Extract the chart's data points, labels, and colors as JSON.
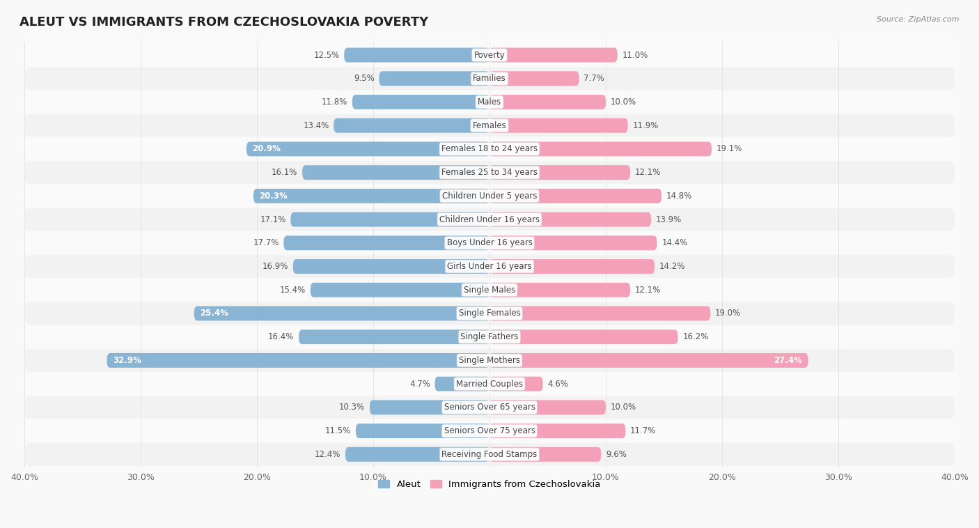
{
  "title": "ALEUT VS IMMIGRANTS FROM CZECHOSLOVAKIA POVERTY",
  "source": "Source: ZipAtlas.com",
  "categories": [
    "Poverty",
    "Families",
    "Males",
    "Females",
    "Females 18 to 24 years",
    "Females 25 to 34 years",
    "Children Under 5 years",
    "Children Under 16 years",
    "Boys Under 16 years",
    "Girls Under 16 years",
    "Single Males",
    "Single Females",
    "Single Fathers",
    "Single Mothers",
    "Married Couples",
    "Seniors Over 65 years",
    "Seniors Over 75 years",
    "Receiving Food Stamps"
  ],
  "aleut_values": [
    12.5,
    9.5,
    11.8,
    13.4,
    20.9,
    16.1,
    20.3,
    17.1,
    17.7,
    16.9,
    15.4,
    25.4,
    16.4,
    32.9,
    4.7,
    10.3,
    11.5,
    12.4
  ],
  "czech_values": [
    11.0,
    7.7,
    10.0,
    11.9,
    19.1,
    12.1,
    14.8,
    13.9,
    14.4,
    14.2,
    12.1,
    19.0,
    16.2,
    27.4,
    4.6,
    10.0,
    11.7,
    9.6
  ],
  "aleut_color": "#8ab4d4",
  "czech_color": "#f4a0b8",
  "row_color_odd": "#f2f2f2",
  "row_color_even": "#fafafa",
  "background_color": "#f9f9f9",
  "xlim": 40.0,
  "bar_height": 0.62,
  "legend_labels": [
    "Aleut",
    "Immigrants from Czechoslovakia"
  ],
  "label_inside_threshold": 20.0,
  "x_tick_labels": [
    "40.0%",
    "30.0%",
    "20.0%",
    "10.0%",
    "",
    "10.0%",
    "20.0%",
    "30.0%",
    "40.0%"
  ],
  "x_ticks": [
    -40,
    -30,
    -20,
    -10,
    0,
    10,
    20,
    30,
    40
  ]
}
